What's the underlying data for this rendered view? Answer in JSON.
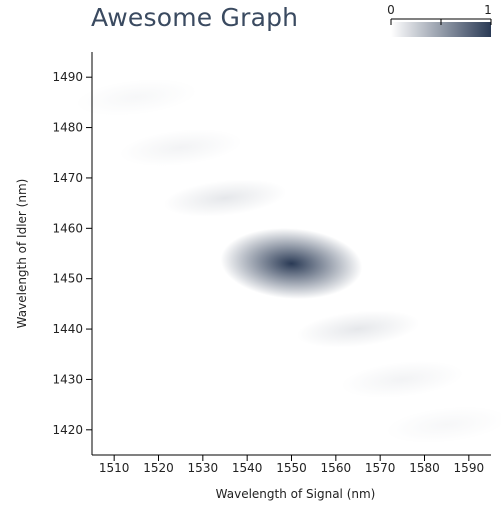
{
  "chart_data": {
    "type": "heatmap",
    "title": "Awesome Graph",
    "xlabel": "Wavelength of Signal (nm)",
    "ylabel": "Wavelength of Idler (nm)",
    "xlim": [
      1505,
      1595
    ],
    "ylim": [
      1415,
      1495
    ],
    "x_ticks": [
      1510,
      1520,
      1530,
      1540,
      1550,
      1560,
      1570,
      1580,
      1590
    ],
    "y_ticks": [
      1420,
      1430,
      1440,
      1450,
      1460,
      1470,
      1480,
      1490
    ],
    "colorbar": {
      "min_label": "0",
      "max_label": "1",
      "range": [
        0,
        1
      ],
      "low_color": "#ffffff",
      "high_color": "#2a3a55"
    },
    "blobs": [
      {
        "cx": 1550,
        "cy": 1453,
        "intensity": 1.0
      },
      {
        "cx": 1535,
        "cy": 1466,
        "intensity": 0.12
      },
      {
        "cx": 1525,
        "cy": 1476,
        "intensity": 0.06
      },
      {
        "cx": 1515,
        "cy": 1486,
        "intensity": 0.04
      },
      {
        "cx": 1565,
        "cy": 1440,
        "intensity": 0.12
      },
      {
        "cx": 1575,
        "cy": 1430,
        "intensity": 0.06
      },
      {
        "cx": 1585,
        "cy": 1421,
        "intensity": 0.04
      }
    ]
  }
}
